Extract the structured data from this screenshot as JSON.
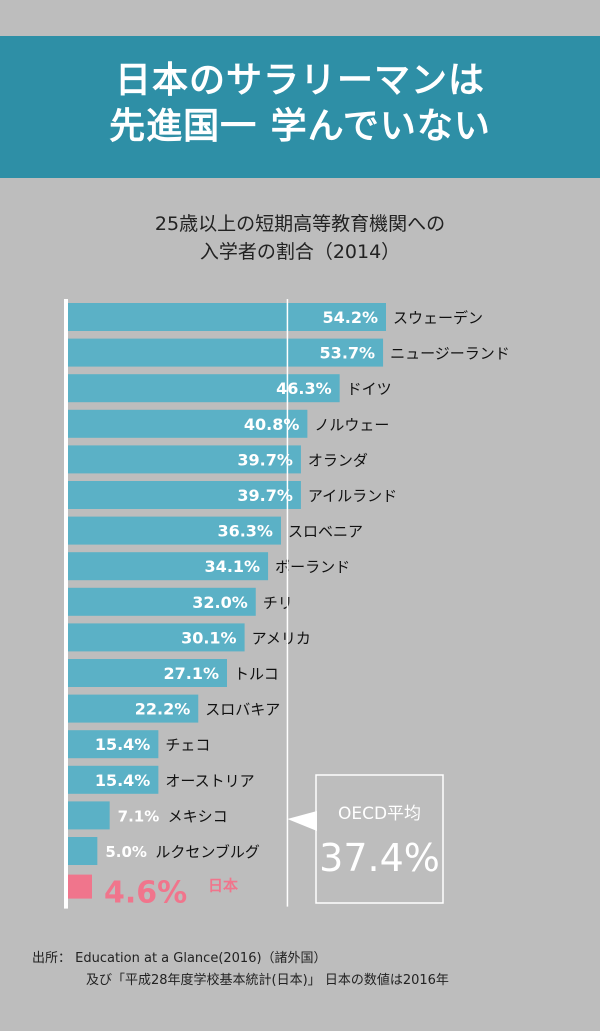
{
  "header": {
    "title_line1": "日本のサラリーマンは",
    "title_line2": "先進国一 学んでいない"
  },
  "subtitle": {
    "line1": "25歳以上の短期高等教育機関への",
    "line2": "入学者の割合（2014）"
  },
  "source": {
    "line1": "出所：  Education at a Glance(2016)（諸外国）",
    "line2": "及び「平成28年度学校基本統計(日本)」 日本の数値は2016年"
  },
  "colors": {
    "bar": "#5bb1c6",
    "japan": "#f0758c",
    "background": "#bdbdbd"
  },
  "chart_data": {
    "type": "bar",
    "orientation": "horizontal",
    "title": "25歳以上の短期高等教育機関への入学者の割合（2014）",
    "unit": "%",
    "xlim": [
      0,
      54.2
    ],
    "categories": [
      "スウェーデン",
      "ニュージーランド",
      "ドイツ",
      "ノルウェー",
      "オランダ",
      "アイルランド",
      "スロベニア",
      "ポーランド",
      "チリ",
      "アメリカ",
      "トルコ",
      "スロバキア",
      "チェコ",
      "オーストリア",
      "メキシコ",
      "ルクセンブルグ",
      "日本"
    ],
    "values": [
      54.2,
      53.7,
      46.3,
      40.8,
      39.7,
      39.7,
      36.3,
      34.1,
      32.0,
      30.1,
      27.1,
      22.2,
      15.4,
      15.4,
      7.1,
      5.0,
      4.6
    ],
    "labels": [
      "54.2%",
      "53.7%",
      "46.3%",
      "40.8%",
      "39.7%",
      "39.7%",
      "36.3%",
      "34.1%",
      "32.0%",
      "30.1%",
      "27.1%",
      "22.2%",
      "15.4%",
      "15.4%",
      "7.1%",
      "5.0%",
      "4.6%"
    ],
    "highlight": "日本",
    "reference_line": {
      "label": "OECD平均",
      "value": 37.4,
      "value_label": "37.4%"
    }
  }
}
